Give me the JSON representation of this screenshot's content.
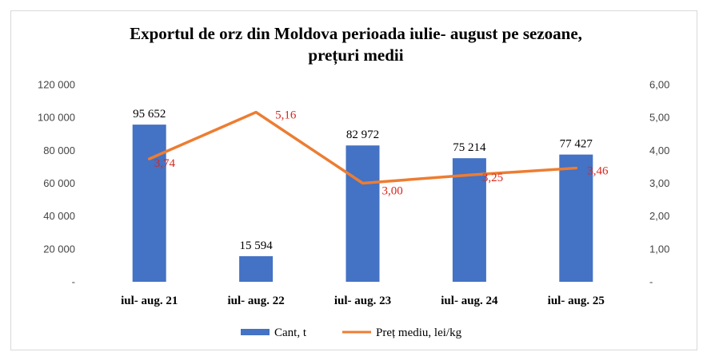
{
  "chart_data": {
    "type": "bar",
    "title_lines": [
      "Exportul de orz  din Moldova perioada iulie- august pe sezoane,",
      "prețuri medii"
    ],
    "categories": [
      "iul- aug. 21",
      "iul- aug. 22",
      "iul- aug. 23",
      "iul- aug. 24",
      "iul- aug. 25"
    ],
    "series": [
      {
        "name": "Cant, t",
        "type": "bar",
        "axis": "left",
        "color": "#4472c4",
        "values": [
          95652,
          15594,
          82972,
          75214,
          77427
        ],
        "labels": [
          "95 652",
          "15 594",
          "82 972",
          "75 214",
          "77 427"
        ]
      },
      {
        "name": "Preț mediu, lei/kg",
        "type": "line",
        "axis": "right",
        "color": "#ed7d31",
        "label_color": "#d9261c",
        "values": [
          3.74,
          5.16,
          3.0,
          3.25,
          3.46
        ],
        "labels": [
          "3,74",
          "5,16",
          "3,00",
          "3,25",
          "3,46"
        ]
      }
    ],
    "y_left": {
      "ylim": [
        0,
        120000
      ],
      "ticks": [
        0,
        20000,
        40000,
        60000,
        80000,
        100000,
        120000
      ],
      "tick_labels": [
        "-",
        "20 000",
        "40 000",
        "60 000",
        "80 000",
        "100 000",
        "120 000"
      ]
    },
    "y_right": {
      "ylim": [
        0,
        6
      ],
      "ticks": [
        0,
        1,
        2,
        3,
        4,
        5,
        6
      ],
      "tick_labels": [
        "-",
        "1,00",
        "2,00",
        "3,00",
        "4,00",
        "5,00",
        "6,00"
      ]
    },
    "grid": false,
    "legend_position": "bottom"
  }
}
